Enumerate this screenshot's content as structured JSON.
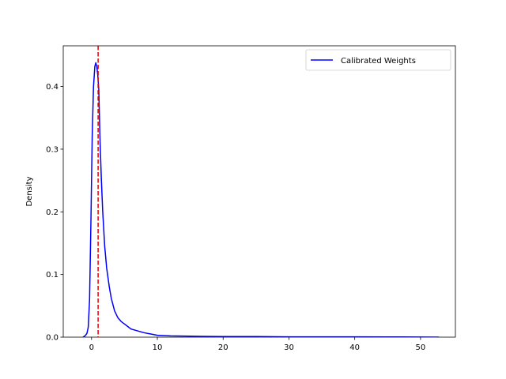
{
  "chart_data": {
    "type": "line",
    "title": "",
    "xlabel": "",
    "ylabel": "Density",
    "xlim": [
      -4.3,
      55.3
    ],
    "ylim": [
      0.0,
      0.465
    ],
    "xticks": [
      0,
      10,
      20,
      30,
      40,
      50
    ],
    "yticks": [
      0.0,
      0.1,
      0.2,
      0.3,
      0.4
    ],
    "xtick_labels": [
      "0",
      "10",
      "20",
      "30",
      "40",
      "50"
    ],
    "ytick_labels": [
      "0.0",
      "0.1",
      "0.2",
      "0.3",
      "0.4"
    ],
    "grid": false,
    "legend_position": "upper right",
    "series": [
      {
        "name": "Calibrated Weights",
        "color": "#0000ff",
        "x": [
          -1.3,
          -1.0,
          -0.7,
          -0.5,
          -0.3,
          -0.1,
          0.1,
          0.3,
          0.5,
          0.65,
          0.8,
          0.95,
          1.1,
          1.3,
          1.5,
          1.7,
          2.0,
          2.3,
          2.7,
          3.0,
          3.5,
          4.0,
          4.5,
          5.0,
          5.5,
          6.0,
          7.0,
          8.0,
          9.0,
          10.0,
          12.0,
          15.0,
          20.0,
          25.0,
          30.0,
          35.0,
          40.0,
          45.0,
          50.0,
          52.8
        ],
        "y": [
          0.0,
          0.002,
          0.006,
          0.016,
          0.06,
          0.18,
          0.32,
          0.4,
          0.432,
          0.438,
          0.432,
          0.418,
          0.395,
          0.31,
          0.25,
          0.2,
          0.145,
          0.11,
          0.08,
          0.062,
          0.042,
          0.031,
          0.025,
          0.021,
          0.017,
          0.013,
          0.01,
          0.007,
          0.005,
          0.003,
          0.002,
          0.0015,
          0.001,
          0.001,
          0.0005,
          0.0005,
          0.0004,
          0.0003,
          0.0002,
          0.0
        ]
      }
    ],
    "vlines": [
      {
        "x": 1.0,
        "color": "#dd0000",
        "style": "dashed"
      }
    ]
  }
}
